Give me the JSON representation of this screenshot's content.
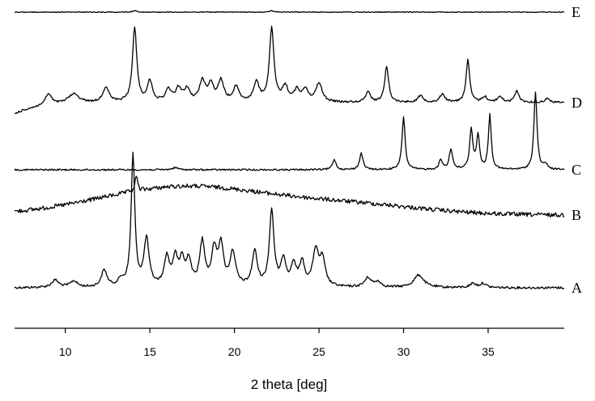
{
  "chart_data": {
    "type": "line",
    "title": "",
    "xlabel": "2 theta [deg]",
    "ylabel": "",
    "xlim": [
      7,
      39.5
    ],
    "xticks": [
      10,
      15,
      20,
      25,
      30,
      35
    ],
    "y_axis_shown": false,
    "grid": false,
    "note": "Stacked XRPD patterns; vertical offsets only, no intensity scale shown",
    "series": [
      {
        "name": "A",
        "baseline": 0.5,
        "peaks": [
          [
            9.4,
            0.7,
            0.25
          ],
          [
            10.5,
            0.6,
            0.25
          ],
          [
            12.3,
            1.6,
            0.2
          ],
          [
            13.3,
            0.6,
            0.2
          ],
          [
            14.0,
            12.5,
            0.13
          ],
          [
            14.8,
            4.5,
            0.18
          ],
          [
            16.0,
            2.7,
            0.18
          ],
          [
            16.5,
            2.6,
            0.18
          ],
          [
            16.9,
            2.3,
            0.16
          ],
          [
            17.3,
            2.4,
            0.18
          ],
          [
            18.1,
            4.2,
            0.18
          ],
          [
            18.8,
            3.3,
            0.18
          ],
          [
            19.2,
            3.8,
            0.18
          ],
          [
            19.9,
            3.2,
            0.2
          ],
          [
            21.2,
            3.3,
            0.18
          ],
          [
            22.2,
            7.2,
            0.16
          ],
          [
            22.9,
            2.5,
            0.18
          ],
          [
            23.5,
            2.0,
            0.18
          ],
          [
            24.0,
            2.2,
            0.18
          ],
          [
            24.8,
            3.3,
            0.2
          ],
          [
            25.2,
            2.5,
            0.2
          ],
          [
            27.9,
            0.9,
            0.25
          ],
          [
            28.5,
            0.5,
            0.2
          ],
          [
            30.9,
            1.2,
            0.35
          ],
          [
            34.1,
            0.4,
            0.2
          ],
          [
            34.7,
            0.4,
            0.2
          ]
        ]
      },
      {
        "name": "B",
        "baseline": 0.3,
        "peaks": [
          [
            14.2,
            1.6,
            0.08
          ]
        ]
      },
      {
        "name": "C",
        "baseline": 0.2,
        "peaks": [
          [
            16.5,
            0.25,
            0.2
          ],
          [
            25.9,
            1.2,
            0.12
          ],
          [
            27.5,
            1.9,
            0.12
          ],
          [
            30.0,
            6.0,
            0.11
          ],
          [
            32.2,
            1.1,
            0.12
          ],
          [
            32.8,
            2.3,
            0.12
          ],
          [
            34.0,
            4.6,
            0.11
          ],
          [
            34.4,
            3.8,
            0.11
          ],
          [
            35.1,
            6.2,
            0.1
          ],
          [
            37.8,
            8.8,
            0.11
          ],
          [
            38.4,
            0.6,
            0.12
          ]
        ]
      },
      {
        "name": "D",
        "baseline": 0.3,
        "peaks": [
          [
            9.0,
            1.2,
            0.22
          ],
          [
            10.5,
            1.0,
            0.4
          ],
          [
            12.4,
            1.6,
            0.22
          ],
          [
            14.1,
            8.0,
            0.15
          ],
          [
            15.0,
            2.2,
            0.18
          ],
          [
            16.1,
            1.3,
            0.2
          ],
          [
            16.7,
            1.4,
            0.2
          ],
          [
            17.2,
            1.3,
            0.2
          ],
          [
            18.1,
            2.2,
            0.2
          ],
          [
            18.6,
            1.8,
            0.2
          ],
          [
            19.2,
            2.2,
            0.2
          ],
          [
            20.1,
            1.6,
            0.2
          ],
          [
            21.3,
            2.0,
            0.2
          ],
          [
            22.2,
            7.8,
            0.16
          ],
          [
            23.0,
            1.6,
            0.2
          ],
          [
            23.7,
            1.2,
            0.2
          ],
          [
            24.2,
            1.3,
            0.2
          ],
          [
            25.0,
            2.0,
            0.22
          ],
          [
            27.9,
            1.2,
            0.16
          ],
          [
            29.0,
            3.8,
            0.14
          ],
          [
            31.0,
            0.7,
            0.2
          ],
          [
            32.3,
            0.9,
            0.18
          ],
          [
            33.8,
            4.5,
            0.13
          ],
          [
            34.8,
            0.6,
            0.18
          ],
          [
            35.7,
            0.6,
            0.18
          ],
          [
            36.7,
            1.2,
            0.16
          ],
          [
            38.5,
            0.4,
            0.2
          ]
        ]
      },
      {
        "name": "E",
        "baseline": 0.1,
        "peaks": [
          [
            14.1,
            0.3,
            0.15
          ],
          [
            22.2,
            0.3,
            0.15
          ]
        ]
      }
    ]
  }
}
